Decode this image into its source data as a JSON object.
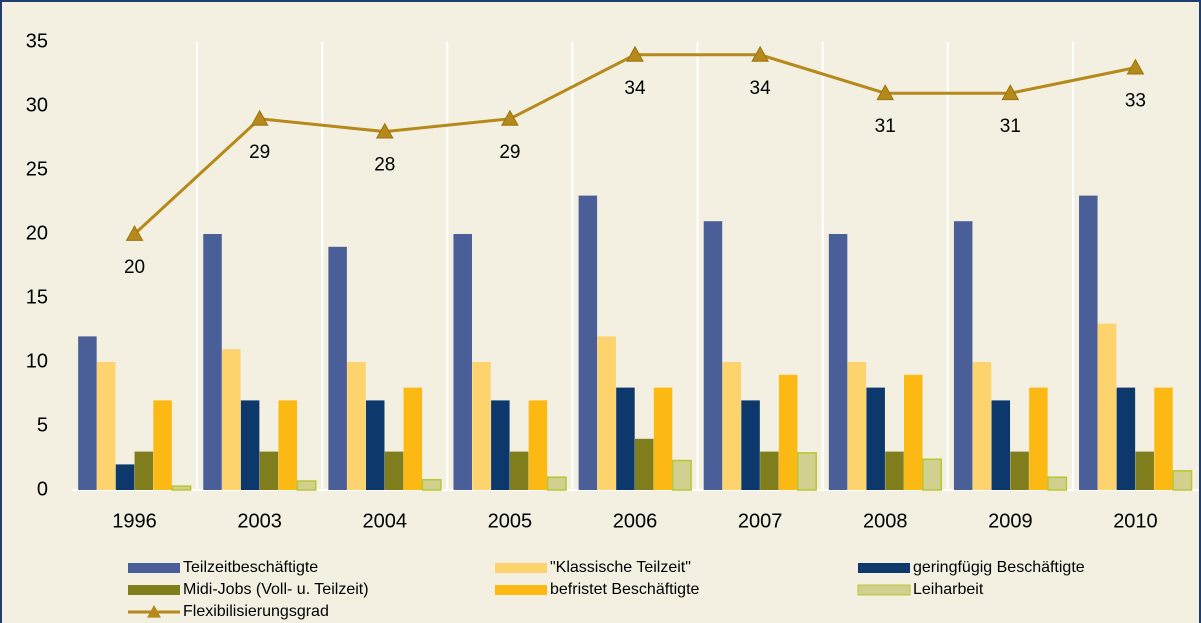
{
  "chart_data": {
    "type": "bar",
    "categories": [
      "1996",
      "2003",
      "2004",
      "2005",
      "2006",
      "2007",
      "2008",
      "2009",
      "2010"
    ],
    "series": [
      {
        "name": "Teilzeitbeschäftigte",
        "color": "#4a5e98",
        "values": [
          12,
          20,
          19,
          20,
          23,
          21,
          20,
          21,
          23
        ]
      },
      {
        "name": "\"Klassische Teilzeit\"",
        "color": "#fdd36e",
        "values": [
          10,
          11,
          10,
          10,
          12,
          10,
          10,
          10,
          13
        ]
      },
      {
        "name": "geringfügig Beschäftigte",
        "color": "#0d386b",
        "values": [
          2,
          7,
          7,
          7,
          8,
          7,
          8,
          7,
          8
        ]
      },
      {
        "name": "Midi-Jobs (Voll- u. Teilzeit)",
        "color": "#7f7d1c",
        "values": [
          3,
          3,
          3,
          3,
          4,
          3,
          3,
          3,
          3
        ]
      },
      {
        "name": "befristet Beschäftigte",
        "color": "#fdb913",
        "values": [
          7,
          7,
          8,
          7,
          8,
          9,
          9,
          8,
          8
        ]
      },
      {
        "name": "Leiharbeit",
        "color": "#d2d08e",
        "values": [
          0.3,
          0.7,
          0.8,
          1.0,
          2.3,
          2.9,
          2.4,
          1.0,
          1.5
        ]
      },
      {
        "name": "Flexibilisierungsgrad",
        "type": "line",
        "color": "#b5891a",
        "values": [
          20,
          29,
          28,
          29,
          34,
          34,
          31,
          31,
          33
        ]
      }
    ],
    "ylim": [
      0,
      35
    ],
    "yticks": [
      0,
      5,
      10,
      15,
      20,
      25,
      30,
      35
    ],
    "grid": false,
    "legend": "bottom"
  }
}
